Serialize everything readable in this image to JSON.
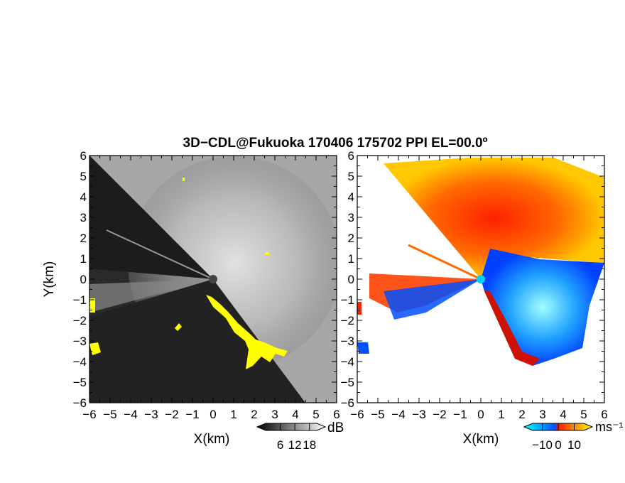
{
  "chart_data": [
    {
      "type": "heatmap",
      "panel": "left",
      "title": "3D−CDL@Fukuoka 170406 175702 PPI EL=00.0º",
      "xlabel": "X(km)",
      "ylabel": "Y(km)",
      "xlim": [
        -6,
        6
      ],
      "ylim": [
        -6,
        6
      ],
      "xticks": [
        "−6",
        "−5",
        "−4",
        "−3",
        "−2",
        "−1",
        "0",
        "1",
        "2",
        "3",
        "4",
        "5",
        "6"
      ],
      "yticks": [
        "−6",
        "−5",
        "−4",
        "−3",
        "−2",
        "−1",
        "0",
        "1",
        "2",
        "3",
        "4",
        "5",
        "6"
      ],
      "colorbar": {
        "unit": "dB",
        "ticks": [
          "6",
          "12",
          "18"
        ],
        "range": [
          0,
          21
        ],
        "colors": [
          "#000000",
          "#ffffff"
        ]
      },
      "highlight_color": "#ffff00",
      "background_color": "#2a2a2a"
    },
    {
      "type": "heatmap",
      "panel": "right",
      "xlabel": "X(km)",
      "xlim": [
        -6,
        6
      ],
      "ylim": [
        -6,
        6
      ],
      "xticks": [
        "−6",
        "−5",
        "−4",
        "−3",
        "−2",
        "−1",
        "0",
        "1",
        "2",
        "3",
        "4",
        "5",
        "6"
      ],
      "yticks": [
        "−6",
        "−5",
        "−4",
        "−3",
        "−2",
        "−1",
        "0",
        "1",
        "2",
        "3",
        "4",
        "5",
        "6"
      ],
      "colorbar": {
        "unit": "ms⁻¹",
        "ticks": [
          "−10",
          "0",
          "10"
        ],
        "range": [
          -16,
          16
        ],
        "colors": [
          "#00ffff",
          "#0050ff",
          "#ff2000",
          "#ffff00"
        ]
      }
    }
  ]
}
